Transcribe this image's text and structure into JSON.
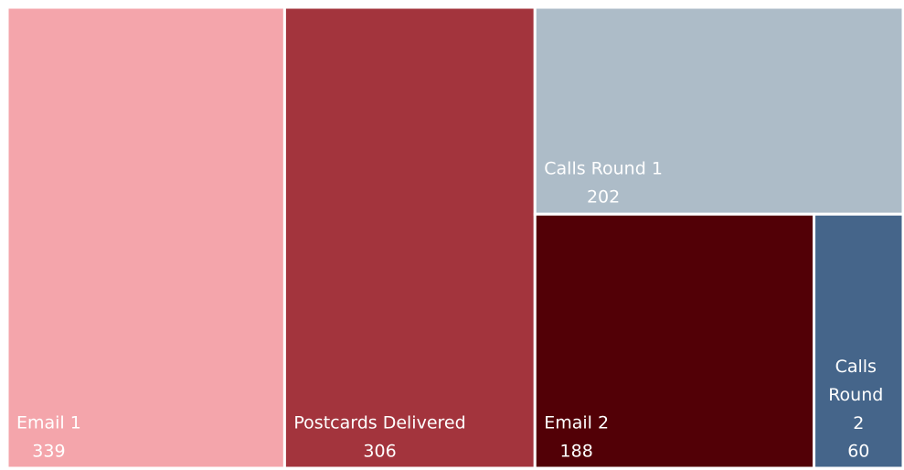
{
  "chart_data": {
    "type": "treemap",
    "categories": [
      "Email 1",
      "Postcards Delivered",
      "Calls Round 1",
      "Email 2",
      "Calls Round 2"
    ],
    "values": [
      339,
      306,
      202,
      188,
      60
    ],
    "colors": [
      "#f4a5ab",
      "#a3343d",
      "#adbcc8",
      "#520006",
      "#45658a"
    ]
  }
}
